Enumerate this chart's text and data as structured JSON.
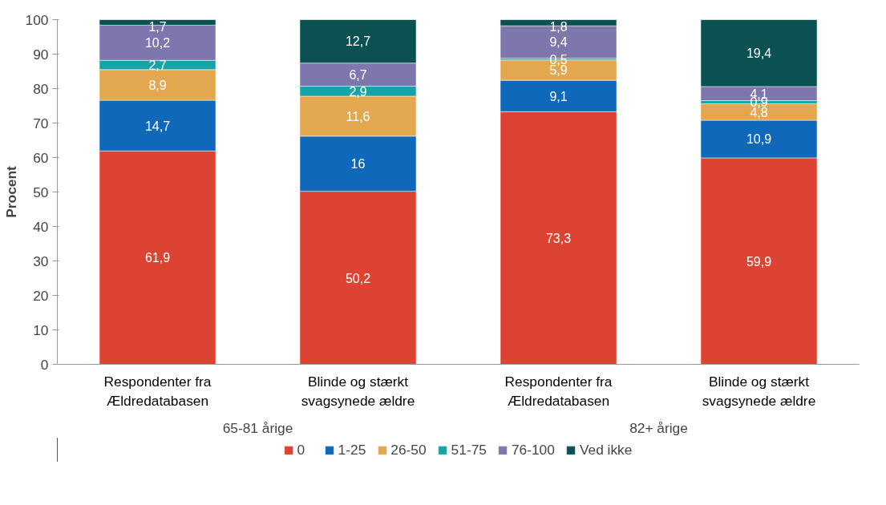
{
  "chart_data": {
    "type": "bar",
    "stacked": true,
    "ylabel": "Procent",
    "categories": [
      "Respondenter fra\nÆldredatabasen",
      "Blinde og stærkt\nsvagsynede ældre",
      "Respondenter fra\nÆldredatabasen",
      "Blinde og stærkt\nsvagsynede ældre"
    ],
    "series": [
      {
        "name": "0",
        "color": "#dc4332",
        "values": [
          61.9,
          50.2,
          73.3,
          59.9
        ],
        "value_labels": [
          "61,9",
          "50,2",
          "73,3",
          "59,9"
        ]
      },
      {
        "name": "1-25",
        "color": "#0f68b9",
        "values": [
          14.7,
          16,
          9.1,
          10.9
        ],
        "value_labels": [
          "14,7",
          "16",
          "9,1",
          "10,9"
        ]
      },
      {
        "name": "26-50",
        "color": "#e3a750",
        "values": [
          8.9,
          11.6,
          5.9,
          4.8
        ],
        "value_labels": [
          "8,9",
          "11,6",
          "5,9",
          "4,8"
        ]
      },
      {
        "name": "51-75",
        "color": "#16a4a6",
        "values": [
          2.7,
          2.9,
          0.5,
          0.9
        ],
        "value_labels": [
          "2,7",
          "2,9",
          "0,5",
          "0,9"
        ]
      },
      {
        "name": "76-100",
        "color": "#7e77ad",
        "values": [
          10.2,
          6.7,
          9.4,
          4.1
        ],
        "value_labels": [
          "10,2",
          "6,7",
          "9,4",
          "4,1"
        ]
      },
      {
        "name": "Ved ikke",
        "color": "#0b5152",
        "values": [
          1.7,
          12.7,
          1.8,
          19.4
        ],
        "value_labels": [
          "1,7",
          "12,7",
          "1,8",
          "19,4"
        ]
      }
    ],
    "annotations": [
      "65-81 årige",
      "82+ årige"
    ],
    "ylim": [
      0,
      100
    ],
    "yticks": [
      0,
      10,
      20,
      30,
      40,
      50,
      60,
      70,
      80,
      90,
      100
    ],
    "grid": false,
    "legend": "bottom"
  }
}
